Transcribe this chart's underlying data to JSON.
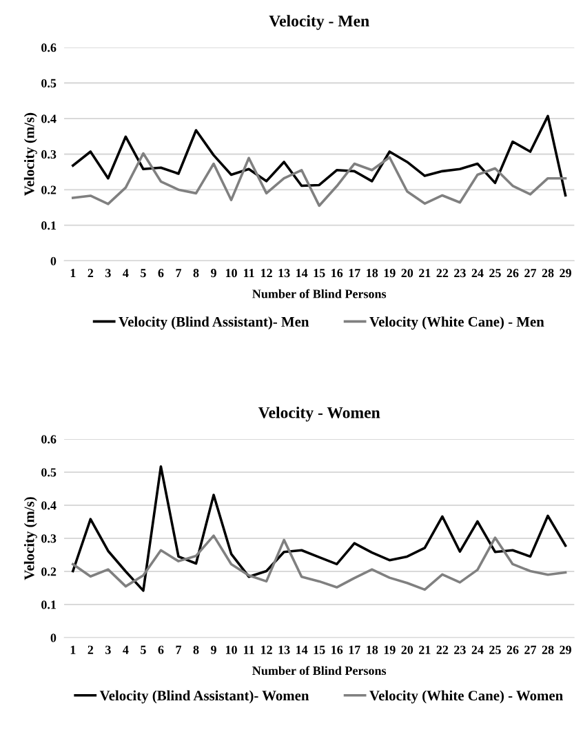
{
  "chart_data": [
    {
      "type": "line",
      "title": "Velocity - Men",
      "xlabel": "Number of Blind Persons",
      "ylabel": "Velocity (m/s)",
      "categories": [
        "1",
        "2",
        "3",
        "4",
        "5",
        "6",
        "7",
        "8",
        "9",
        "10",
        "11",
        "12",
        "13",
        "14",
        "15",
        "16",
        "17",
        "18",
        "19",
        "20",
        "21",
        "22",
        "23",
        "24",
        "25",
        "26",
        "27",
        "28",
        "29"
      ],
      "series": [
        {
          "name": "Velocity (Blind Assistant)- Men",
          "color": "#000000",
          "values": [
            0.268,
            0.307,
            0.232,
            0.349,
            0.258,
            0.262,
            0.245,
            0.367,
            0.297,
            0.242,
            0.258,
            0.224,
            0.278,
            0.211,
            0.213,
            0.255,
            0.252,
            0.224,
            0.307,
            0.278,
            0.239,
            0.252,
            0.258,
            0.273,
            0.219,
            0.335,
            0.307,
            0.407,
            0.184
          ]
        },
        {
          "name": "Velocity (White Cane) - Men",
          "color": "#808080",
          "values": [
            0.177,
            0.183,
            0.16,
            0.206,
            0.302,
            0.223,
            0.2,
            0.19,
            0.273,
            0.171,
            0.289,
            0.19,
            0.232,
            0.255,
            0.155,
            0.21,
            0.273,
            0.255,
            0.291,
            0.195,
            0.161,
            0.184,
            0.164,
            0.242,
            0.26,
            0.211,
            0.187,
            0.232,
            0.232
          ]
        }
      ],
      "ylim": [
        0,
        0.6
      ],
      "yticks": [
        {
          "value": 0,
          "label": "0"
        },
        0.1,
        0.2,
        0.3,
        0.4,
        0.5,
        0.6
      ],
      "grid": "y",
      "legend": "bottom",
      "marker": "none",
      "line_style": "solid"
    },
    {
      "type": "line",
      "title": "Velocity - Women",
      "xlabel": "Number of Blind Persons",
      "ylabel": "Velocity (m/s)",
      "categories": [
        "1",
        "2",
        "3",
        "4",
        "5",
        "6",
        "7",
        "8",
        "9",
        "10",
        "11",
        "12",
        "13",
        "14",
        "15",
        "16",
        "17",
        "18",
        "19",
        "20",
        "21",
        "22",
        "23",
        "24",
        "25",
        "26",
        "27",
        "28",
        "29"
      ],
      "series": [
        {
          "name": "Velocity (Blind Assistant)- Women",
          "color": "#000000",
          "values": [
            0.201,
            0.358,
            0.262,
            0.2,
            0.142,
            0.517,
            0.245,
            0.224,
            0.431,
            0.253,
            0.184,
            0.201,
            0.259,
            0.264,
            0.243,
            0.222,
            0.285,
            0.257,
            0.234,
            0.245,
            0.271,
            0.366,
            0.26,
            0.351,
            0.259,
            0.264,
            0.245,
            0.368,
            0.278
          ]
        },
        {
          "name": "Velocity (White Cane) - Women",
          "color": "#808080",
          "values": [
            0.222,
            0.185,
            0.206,
            0.155,
            0.188,
            0.264,
            0.231,
            0.247,
            0.308,
            0.222,
            0.188,
            0.17,
            0.295,
            0.184,
            0.17,
            0.152,
            0.18,
            0.206,
            0.181,
            0.165,
            0.145,
            0.191,
            0.167,
            0.205,
            0.302,
            0.222,
            0.201,
            0.19,
            0.197
          ]
        }
      ],
      "ylim": [
        0,
        0.6
      ],
      "yticks": [
        {
          "value": 0,
          "label": "0"
        },
        0.1,
        0.2,
        0.3,
        0.4,
        0.5,
        0.6
      ],
      "grid": "y",
      "legend": "bottom",
      "marker": "none",
      "line_style": "solid"
    }
  ]
}
